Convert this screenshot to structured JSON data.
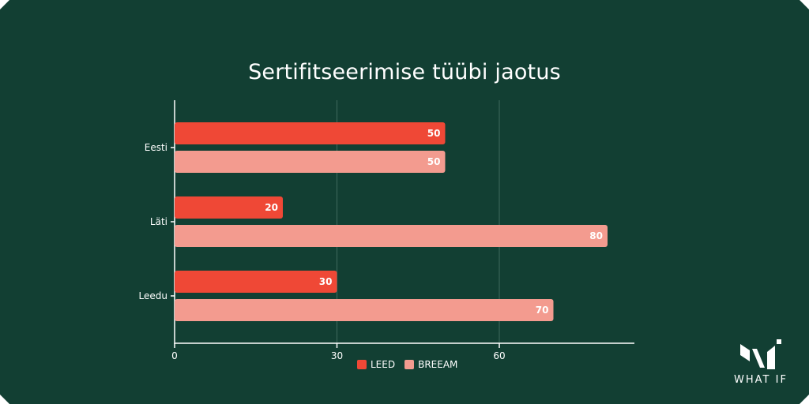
{
  "colors": {
    "background": "#123f33",
    "leed": "#ef4836",
    "breeam": "#f39b8f",
    "grid": "#3f6a5c",
    "axis": "#ffffff"
  },
  "chart_data": {
    "type": "bar",
    "orientation": "horizontal",
    "title": "Sertifitseerimise tüübi jaotus",
    "categories": [
      "Eesti",
      "Läti",
      "Leedu"
    ],
    "series": [
      {
        "name": "LEED",
        "values": [
          50,
          20,
          30
        ]
      },
      {
        "name": "BREEAM",
        "values": [
          50,
          80,
          70
        ]
      }
    ],
    "x_ticks": [
      0,
      30,
      60
    ],
    "xlim": [
      0,
      85
    ],
    "grid": "vertical",
    "legend_position": "bottom-center",
    "data_labels": true
  },
  "logo": {
    "text": "WHAT IF",
    "icon": "what-if-logo-icon"
  }
}
